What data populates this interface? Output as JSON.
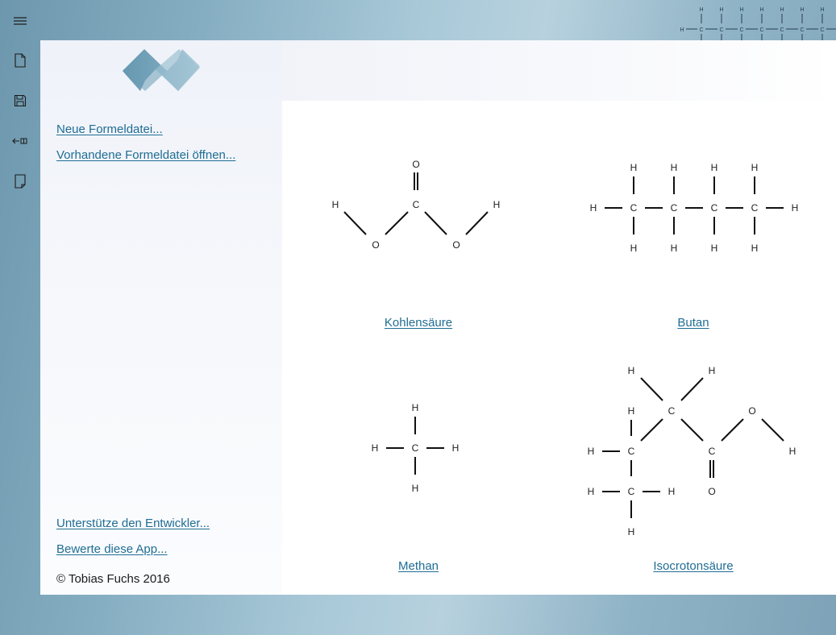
{
  "rail": {
    "items": [
      {
        "icon": "hamburger-menu-icon"
      },
      {
        "icon": "new-document-icon"
      },
      {
        "icon": "save-icon"
      },
      {
        "icon": "exit-icon"
      },
      {
        "icon": "notebook-icon"
      }
    ]
  },
  "left_panel": {
    "links": [
      "Neue Formeldatei...",
      "Vorhandene Formeldatei öffnen..."
    ],
    "bottom_links": [
      "Unterstütze den Entwickler...",
      "Bewerte diese App..."
    ],
    "copyright": "© Tobias Fuchs 2016"
  },
  "formulas": [
    {
      "name": "Kohlensäure",
      "atoms": [
        "O",
        "C",
        "H",
        "H",
        "O",
        "O"
      ]
    },
    {
      "name": "Butan",
      "atoms": [
        "H",
        "H",
        "H",
        "H",
        "H",
        "C",
        "C",
        "C",
        "C",
        "H",
        "H",
        "H",
        "H",
        "H"
      ]
    },
    {
      "name": "Methan",
      "atoms": [
        "H",
        "H",
        "C",
        "H",
        "H"
      ]
    },
    {
      "name": "Isocrotonsäure",
      "atoms": [
        "H",
        "H",
        "H",
        "C",
        "O",
        "H",
        "C",
        "C",
        "H",
        "H",
        "C",
        "H",
        "O",
        "H"
      ]
    }
  ],
  "header_decoration": {
    "top_atoms": [
      "H",
      "H",
      "H",
      "H",
      "H",
      "H",
      "H"
    ],
    "chain_atoms": [
      "H",
      "C",
      "C",
      "C",
      "C",
      "C",
      "C",
      "C"
    ]
  },
  "colors": {
    "accent": "#1f6d93",
    "rail": "#7aa0b4"
  }
}
